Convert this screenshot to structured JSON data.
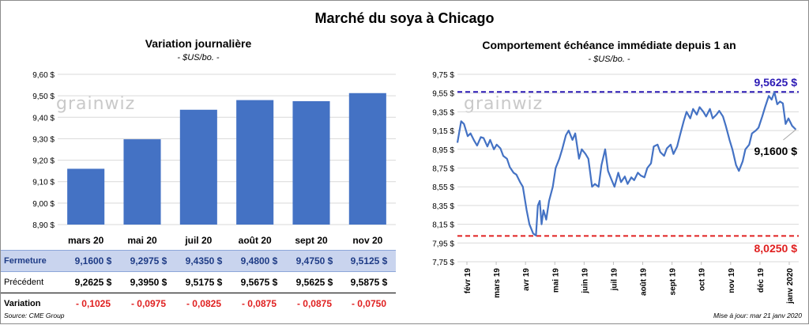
{
  "main_title": "Marché du soya à Chicago",
  "left": {
    "title": "Variation journalière",
    "units": "- $US/bo. -"
  },
  "right": {
    "title": "Comportement échéance immédiate depuis 1 an",
    "units": "- $US/bo. -"
  },
  "logo_text": "grainwiz",
  "table": {
    "rows": [
      {
        "label": "Fermeture",
        "values": [
          "9,1600  $",
          "9,2975  $",
          "9,4350  $",
          "9,4800  $",
          "9,4750  $",
          "9,5125  $"
        ]
      },
      {
        "label": "Précédent",
        "values": [
          "9,2625  $",
          "9,3950  $",
          "9,5175  $",
          "9,5675  $",
          "9,5625  $",
          "9,5875  $"
        ]
      },
      {
        "label": "Variation",
        "values": [
          "- 0,1025",
          "- 0,0975",
          "- 0,0825",
          "- 0,0875",
          "- 0,0875",
          "- 0,0750"
        ]
      }
    ]
  },
  "footer": {
    "source": "Source: CME Group",
    "updated": "Mise à jour: mar 21 janv 2020"
  },
  "colors": {
    "bar": "#4472c4",
    "line": "#4472c4",
    "max_line": "#2c1ab5",
    "min_line": "#e02020",
    "close_row": "#c9d4ee"
  },
  "chart_data": [
    {
      "type": "bar",
      "categories": [
        "mars 20",
        "mai 20",
        "juil 20",
        "août 20",
        "sept 20",
        "nov 20"
      ],
      "values": [
        9.16,
        9.2975,
        9.435,
        9.48,
        9.475,
        9.5125
      ],
      "ylim": [
        8.9,
        9.6
      ],
      "yticks": [
        8.9,
        9.0,
        9.1,
        9.2,
        9.3,
        9.4,
        9.5,
        9.6
      ],
      "ytick_labels": [
        "8,90 $",
        "9,00 $",
        "9,10 $",
        "9,20 $",
        "9,30 $",
        "9,40 $",
        "9,50 $",
        "9,60 $"
      ],
      "grid": true
    },
    {
      "type": "line",
      "x_start": "févr 19",
      "xticks": [
        "févr 19",
        "mars 19",
        "avr 19",
        "mai 19",
        "juin 19",
        "juil 19",
        "août 19",
        "sept 19",
        "oct 19",
        "nov 19",
        "déc 19",
        "janv 2020"
      ],
      "ylim": [
        7.75,
        9.75
      ],
      "yticks": [
        7.75,
        7.95,
        8.15,
        8.35,
        8.55,
        8.75,
        8.95,
        9.15,
        9.35,
        9.55,
        9.75
      ],
      "ytick_labels": [
        "7,75 $",
        "7,95 $",
        "8,15 $",
        "8,35 $",
        "8,55 $",
        "8,75 $",
        "8,95 $",
        "9,15 $",
        "9,35 $",
        "9,55 $",
        "9,75 $"
      ],
      "grid": true,
      "series": [
        {
          "values": [
            [
              0,
              9.02
            ],
            [
              4,
              9.25
            ],
            [
              7,
              9.22
            ],
            [
              11,
              9.09
            ],
            [
              14,
              9.12
            ],
            [
              18,
              9.04
            ],
            [
              21,
              8.99
            ],
            [
              25,
              9.08
            ],
            [
              28,
              9.07
            ],
            [
              32,
              8.98
            ],
            [
              35,
              9.05
            ],
            [
              39,
              8.95
            ],
            [
              42,
              9.0
            ],
            [
              46,
              8.96
            ],
            [
              49,
              8.88
            ],
            [
              53,
              8.85
            ],
            [
              56,
              8.76
            ],
            [
              60,
              8.7
            ],
            [
              63,
              8.68
            ],
            [
              67,
              8.6
            ],
            [
              70,
              8.55
            ],
            [
              74,
              8.3
            ],
            [
              77,
              8.15
            ],
            [
              81,
              8.05
            ],
            [
              84,
              8.03
            ],
            [
              86,
              8.35
            ],
            [
              88,
              8.4
            ],
            [
              90,
              8.15
            ],
            [
              92,
              8.3
            ],
            [
              95,
              8.2
            ],
            [
              98,
              8.4
            ],
            [
              102,
              8.55
            ],
            [
              105,
              8.75
            ],
            [
              109,
              8.85
            ],
            [
              112,
              8.95
            ],
            [
              116,
              9.1
            ],
            [
              119,
              9.15
            ],
            [
              123,
              9.05
            ],
            [
              126,
              9.12
            ],
            [
              130,
              8.85
            ],
            [
              133,
              8.95
            ],
            [
              137,
              8.9
            ],
            [
              140,
              8.85
            ],
            [
              144,
              8.55
            ],
            [
              147,
              8.58
            ],
            [
              151,
              8.55
            ],
            [
              154,
              8.78
            ],
            [
              158,
              8.95
            ],
            [
              161,
              8.72
            ],
            [
              165,
              8.62
            ],
            [
              168,
              8.55
            ],
            [
              172,
              8.7
            ],
            [
              175,
              8.6
            ],
            [
              179,
              8.66
            ],
            [
              182,
              8.58
            ],
            [
              186,
              8.65
            ],
            [
              189,
              8.62
            ],
            [
              193,
              8.7
            ],
            [
              196,
              8.67
            ],
            [
              200,
              8.65
            ],
            [
              203,
              8.75
            ],
            [
              207,
              8.8
            ],
            [
              210,
              8.98
            ],
            [
              214,
              9.0
            ],
            [
              217,
              8.92
            ],
            [
              221,
              8.88
            ],
            [
              224,
              8.96
            ],
            [
              228,
              9.0
            ],
            [
              231,
              8.9
            ],
            [
              235,
              8.98
            ],
            [
              238,
              9.1
            ],
            [
              242,
              9.25
            ],
            [
              245,
              9.35
            ],
            [
              249,
              9.28
            ],
            [
              252,
              9.38
            ],
            [
              256,
              9.32
            ],
            [
              259,
              9.4
            ],
            [
              263,
              9.35
            ],
            [
              266,
              9.3
            ],
            [
              270,
              9.38
            ],
            [
              273,
              9.28
            ],
            [
              277,
              9.32
            ],
            [
              280,
              9.36
            ],
            [
              284,
              9.3
            ],
            [
              287,
              9.2
            ],
            [
              291,
              9.05
            ],
            [
              294,
              8.95
            ],
            [
              298,
              8.78
            ],
            [
              301,
              8.72
            ],
            [
              305,
              8.82
            ],
            [
              308,
              8.95
            ],
            [
              312,
              9.0
            ],
            [
              315,
              9.12
            ],
            [
              319,
              9.15
            ],
            [
              322,
              9.18
            ],
            [
              326,
              9.3
            ],
            [
              329,
              9.4
            ],
            [
              333,
              9.52
            ],
            [
              336,
              9.48
            ],
            [
              339,
              9.56
            ],
            [
              342,
              9.43
            ],
            [
              345,
              9.46
            ],
            [
              348,
              9.44
            ],
            [
              351,
              9.22
            ],
            [
              354,
              9.28
            ],
            [
              358,
              9.2
            ],
            [
              362,
              9.16
            ]
          ]
        }
      ],
      "max_line": 9.5625,
      "min_line": 8.025,
      "annotations": {
        "max_label": "9,5625  $",
        "min_label": "8,0250  $",
        "last_label": "9,1600 $"
      }
    }
  ]
}
